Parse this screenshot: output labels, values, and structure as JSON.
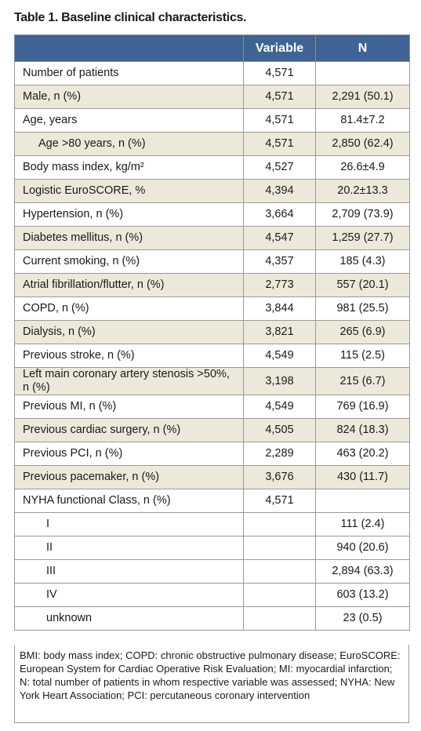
{
  "title": "Table 1. Baseline clinical characteristics.",
  "table": {
    "header": [
      "Variable",
      "N"
    ],
    "rows": [
      {
        "label": "Number of patients",
        "variable": "4,571",
        "n": null
      },
      {
        "label": "Male, n (%)",
        "variable": "4,571",
        "n": "2,291 (50.1)"
      },
      {
        "label": "Age, years",
        "variable": "4,571",
        "n": "81.4±7.2"
      },
      {
        "label": "Age >80 years, n (%)",
        "variable": "4,571",
        "n": "2,850 (62.4)",
        "indent": true
      },
      {
        "label": "Body mass index, kg/m²",
        "variable": "4,527",
        "n": "26.6±4.9"
      },
      {
        "label": "Logistic EuroSCORE, %",
        "variable": "4,394",
        "n": "20.2±13.3"
      },
      {
        "label": "Hypertension, n (%)",
        "variable": "3,664",
        "n": "2,709 (73.9)"
      },
      {
        "label": "Diabetes mellitus, n (%)",
        "variable": "4,547",
        "n": "1,259 (27.7)"
      },
      {
        "label": "Current smoking, n (%)",
        "variable": "4,357",
        "n": "185 (4.3)"
      },
      {
        "label": "Atrial fibrillation/flutter, n (%)",
        "variable": "2,773",
        "n": "557 (20.1)"
      },
      {
        "label": "COPD, n (%)",
        "variable": "3,844",
        "n": "981 (25.5)"
      },
      {
        "label": "Dialysis, n (%)",
        "variable": "3,821",
        "n": "265 (6.9)"
      },
      {
        "label": "Previous stroke, n (%)",
        "variable": "4,549",
        "n": "115 (2.5)"
      },
      {
        "label": "Left main coronary artery stenosis >50%, n (%)",
        "variable": "3,198",
        "n": "215 (6.7)"
      },
      {
        "label": "Previous MI, n (%)",
        "variable": "4,549",
        "n": "769 (16.9)"
      },
      {
        "label": "Previous cardiac surgery, n (%)",
        "variable": "4,505",
        "n": "824 (18.3)"
      },
      {
        "label": "Previous PCI, n (%)",
        "variable": "2,289",
        "n": "463 (20.2)"
      },
      {
        "label": "Previous pacemaker, n (%)",
        "variable": "3,676",
        "n": "430 (11.7)"
      },
      {
        "label": "NYHA functional Class, n (%)",
        "variable": "4,571",
        "n": null
      },
      {
        "label": "I",
        "variable": null,
        "n": "111 (2.4)",
        "indent": true
      },
      {
        "label": "II",
        "variable": null,
        "n": "940 (20.6)",
        "indent": true
      },
      {
        "label": "III",
        "variable": null,
        "n": "2,894 (63.3)",
        "indent": true
      },
      {
        "label": "IV",
        "variable": null,
        "n": "603 (13.2)",
        "indent": true
      },
      {
        "label": "unknown",
        "variable": null,
        "n": "23 (0.5)",
        "indent": true
      }
    ]
  },
  "footnote": "BMI: body mass index; COPD: chronic obstructive pulmonary disease; EuroSCORE: European System for Cardiac Operative Risk Evaluation; MI: myocardial infarction; N: total number of patients in whom respective variable was assessed; NYHA: New York Heart Association; PCI: percutaneous coronary intervention"
}
